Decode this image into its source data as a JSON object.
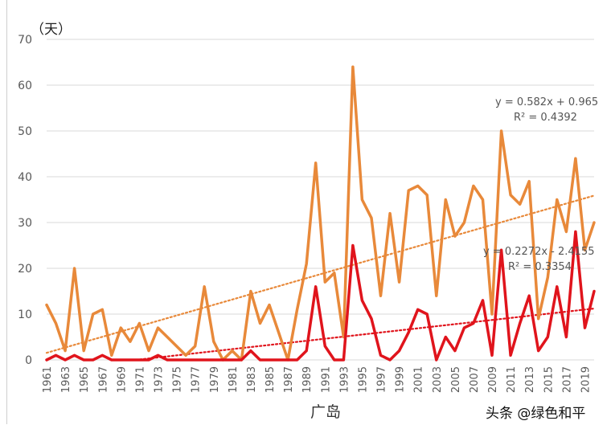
{
  "chart_data": {
    "type": "line",
    "unit_label": "（天）",
    "xlabel": "广岛",
    "ylim": [
      0,
      70
    ],
    "yticks": [
      0,
      10,
      20,
      30,
      40,
      50,
      60,
      70
    ],
    "x": [
      1961,
      1962,
      1963,
      1964,
      1965,
      1966,
      1967,
      1968,
      1969,
      1970,
      1971,
      1972,
      1973,
      1974,
      1975,
      1976,
      1977,
      1978,
      1979,
      1980,
      1981,
      1982,
      1983,
      1984,
      1985,
      1986,
      1987,
      1988,
      1989,
      1990,
      1991,
      1992,
      1993,
      1994,
      1995,
      1996,
      1997,
      1998,
      1999,
      2000,
      2001,
      2002,
      2003,
      2004,
      2005,
      2006,
      2007,
      2008,
      2009,
      2010,
      2011,
      2012,
      2013,
      2014,
      2015,
      2016,
      2017,
      2018,
      2019,
      2020
    ],
    "xtick_labels": [
      "1961",
      "1963",
      "1965",
      "1967",
      "1969",
      "1971",
      "1973",
      "1975",
      "1977",
      "1979",
      "1981",
      "1983",
      "1985",
      "1987",
      "1989",
      "1991",
      "1993",
      "1995",
      "1997",
      "1999",
      "2001",
      "2003",
      "2005",
      "2007",
      "2009",
      "2011",
      "2013",
      "2015",
      "2017",
      "2019"
    ],
    "series": [
      {
        "name": "orange",
        "color": "#E8893A",
        "values": [
          12,
          8,
          2,
          20,
          2,
          10,
          11,
          1,
          7,
          4,
          8,
          2,
          7,
          5,
          3,
          1,
          3,
          16,
          4,
          0,
          2,
          0,
          15,
          8,
          12,
          6,
          0,
          11,
          21,
          43,
          17,
          19,
          5,
          64,
          35,
          31,
          14,
          32,
          17,
          37,
          38,
          36,
          14,
          35,
          27,
          30,
          38,
          35,
          10,
          50,
          36,
          34,
          39,
          9,
          18,
          35,
          28,
          44,
          24,
          30
        ],
        "trend": {
          "slope": 0.582,
          "intercept": 0.965,
          "color": "#E8893A"
        }
      },
      {
        "name": "red",
        "color": "#E0141C",
        "values": [
          0,
          1,
          0,
          1,
          0,
          0,
          1,
          0,
          0,
          0,
          0,
          0,
          1,
          0,
          0,
          0,
          0,
          0,
          0,
          0,
          0,
          0,
          2,
          0,
          0,
          0,
          0,
          0,
          2,
          16,
          3,
          0,
          0,
          25,
          13,
          9,
          1,
          0,
          2,
          6,
          11,
          10,
          0,
          5,
          2,
          7,
          8,
          13,
          1,
          24,
          1,
          8,
          14,
          2,
          5,
          16,
          5,
          28,
          7,
          15
        ],
        "trend": {
          "slope": 0.2272,
          "intercept": -2.4155,
          "color": "#E0141C"
        }
      }
    ],
    "annotations": {
      "eq1": "y = 0.582x + 0.965",
      "r1": "R² = 0.4392",
      "eq2": "y = 0.2272x - 2.4155",
      "r2": "R² = 0.3354"
    }
  },
  "watermark": "头条 @绿色和平",
  "colors": {
    "grid": "#d9d9d9",
    "tick_text": "#595959"
  }
}
